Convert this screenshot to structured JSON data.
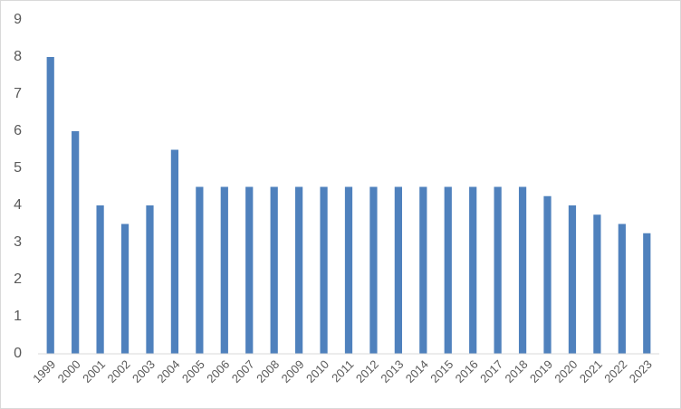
{
  "chart_data": {
    "type": "bar",
    "categories": [
      "1999",
      "2000",
      "2001",
      "2002",
      "2003",
      "2004",
      "2005",
      "2006",
      "2007",
      "2008",
      "2009",
      "2010",
      "2011",
      "2012",
      "2013",
      "2014",
      "2015",
      "2016",
      "2017",
      "2018",
      "2019",
      "2020",
      "2021",
      "2022",
      "2023"
    ],
    "values": [
      8,
      6,
      4,
      3.5,
      4,
      5.5,
      4.5,
      4.5,
      4.5,
      4.5,
      4.5,
      4.5,
      4.5,
      4.5,
      4.5,
      4.5,
      4.5,
      4.5,
      4.5,
      4.5,
      4.25,
      4,
      3.75,
      3.5,
      3.25
    ],
    "color": "#4f81bd",
    "ylim": [
      0,
      9
    ],
    "yticks": [
      0,
      1,
      2,
      3,
      4,
      5,
      6,
      7,
      8,
      9
    ],
    "grid": false
  }
}
